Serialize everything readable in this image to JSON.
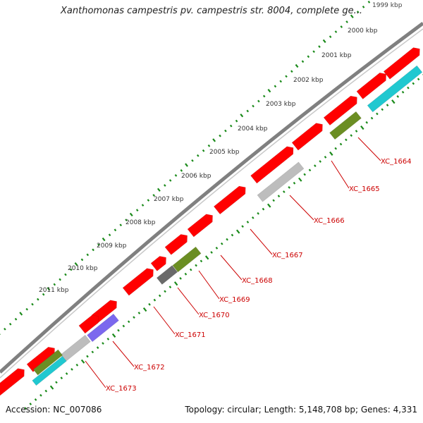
{
  "title": "Xanthomonas campestris pv. campestris str. 8004, complete ge...",
  "footer": {
    "accession": "Accession: NC_007086",
    "summary": "Topology: circular; Length: 5,148,708 bp; Genes: 4,331"
  },
  "colors": {
    "backbone": "#808080",
    "forward_gene": "#ff0000",
    "tick": "#1a8a1a",
    "gene_label": "#cc0000",
    "gray_feature": "#bdbdbd",
    "dark_gray_feature": "#6a6a6a",
    "olive_feature": "#6b8e23",
    "cyan_feature": "#20c8d0",
    "purple_feature": "#7b68ee"
  },
  "ruler": {
    "labels": [
      "1999 kbp",
      "2000 kbp",
      "2001 kbp",
      "2002 kbp",
      "2003 kbp",
      "2004 kbp",
      "2005 kbp",
      "2006 kbp",
      "2007 kbp",
      "2008 kbp",
      "2009 kbp",
      "2010 kbp",
      "2011 kbp"
    ]
  },
  "genes": [
    {
      "label": "XC_1664",
      "color": "cyan_feature"
    },
    {
      "label": "XC_1665",
      "color": "olive_feature"
    },
    {
      "label": "XC_1666",
      "color": "gray_feature"
    },
    {
      "label": "XC_1667",
      "color": "forward_gene"
    },
    {
      "label": "XC_1668",
      "color": "forward_gene"
    },
    {
      "label": "XC_1669",
      "color": "olive_feature"
    },
    {
      "label": "XC_1670",
      "color": "dark_gray_feature"
    },
    {
      "label": "XC_1671",
      "color": "forward_gene"
    },
    {
      "label": "XC_1672",
      "color": "purple_feature"
    },
    {
      "label": "XC_1673",
      "color": "gray_feature"
    }
  ]
}
